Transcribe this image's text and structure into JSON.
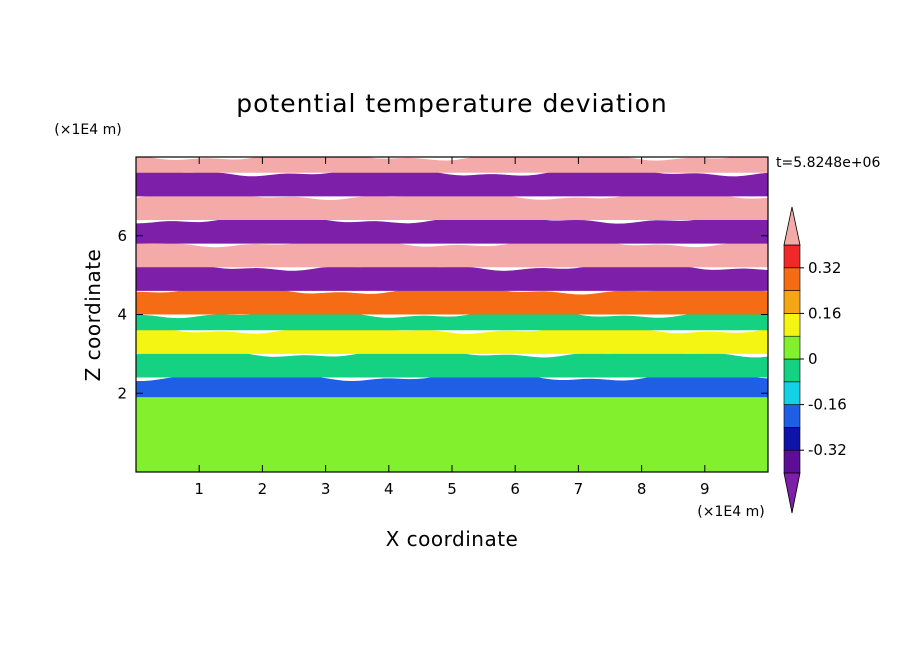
{
  "chart_data": {
    "type": "heatmap",
    "title": "potential temperature deviation",
    "xlabel": "X coordinate",
    "ylabel": "Z coordinate",
    "x_scale_label": "(×1E4 m)",
    "y_scale_label": "(×1E4 m)",
    "time_label": "t=5.8248e+06",
    "xlim": [
      0,
      10
    ],
    "ylim": [
      0,
      8
    ],
    "x_ticks": [
      1,
      2,
      3,
      4,
      5,
      6,
      7,
      8,
      9
    ],
    "y_ticks": [
      2,
      4,
      6
    ],
    "contour_levels": [
      -0.4,
      -0.32,
      -0.24,
      -0.16,
      -0.08,
      0,
      0.08,
      0.16,
      0.24,
      0.32,
      0.4
    ],
    "colorbar_labels": [
      "0.32",
      "0.16",
      "0",
      "-0.16",
      "-0.32"
    ],
    "colorbar_label_values": [
      0.32,
      0.16,
      0,
      -0.16,
      -0.32
    ],
    "colors": {
      "below_min": "#7d1fa8",
      "bins": [
        "#5b0f96",
        "#0f14a8",
        "#1e5fe6",
        "#14d2e6",
        "#14d282",
        "#82f02d",
        "#f5f514",
        "#f5a614",
        "#f56c14",
        "#f02828"
      ],
      "above_max": "#f5aaaa"
    },
    "layers": [
      {
        "z": [
          0,
          1.9
        ],
        "value": 0.04
      },
      {
        "z": [
          1.9,
          2.4
        ],
        "value": -0.2
      },
      {
        "z": [
          2.4,
          3.0
        ],
        "value": -0.06
      },
      {
        "z": [
          3.0,
          3.6
        ],
        "value": 0.12
      },
      {
        "z": [
          3.6,
          4.0
        ],
        "value": -0.08
      },
      {
        "z": [
          4.0,
          4.6
        ],
        "value": 0.3
      },
      {
        "z": [
          4.6,
          5.2
        ],
        "value": -0.45
      },
      {
        "z": [
          5.2,
          5.8
        ],
        "value": 0.45
      },
      {
        "z": [
          5.8,
          6.4
        ],
        "value": -0.45
      },
      {
        "z": [
          6.4,
          7.0
        ],
        "value": 0.45
      },
      {
        "z": [
          7.0,
          7.6
        ],
        "value": -0.45
      },
      {
        "z": [
          7.6,
          8.0
        ],
        "value": 0.45
      }
    ]
  }
}
